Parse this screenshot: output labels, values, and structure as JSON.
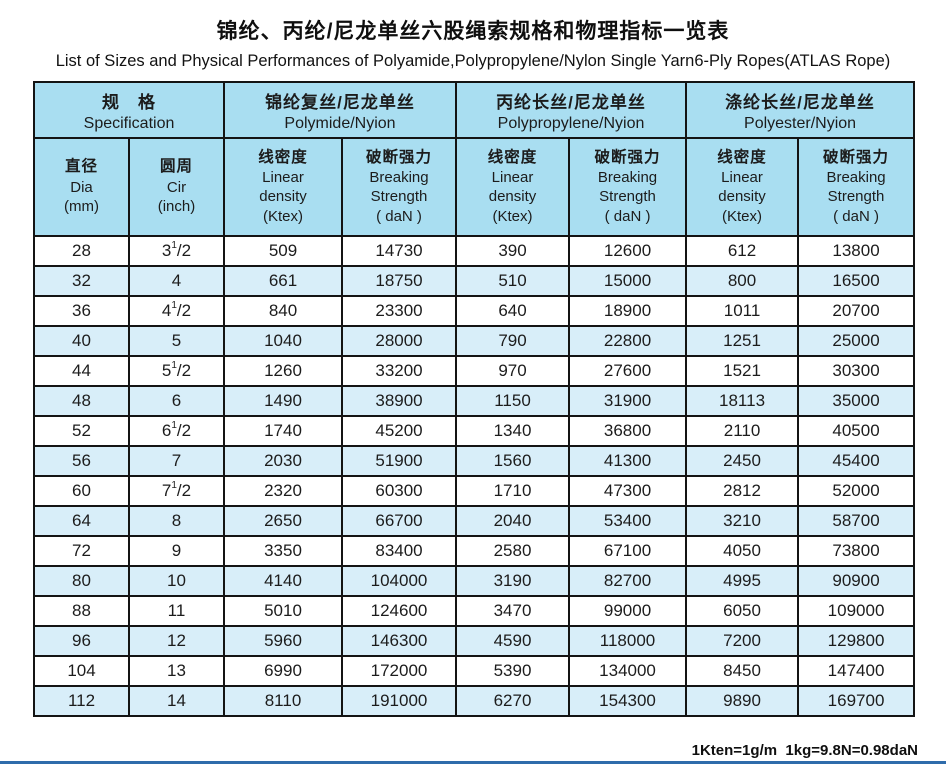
{
  "page": {
    "title": "锦纶、丙纶/尼龙单丝六股绳索规格和物理指标一览表",
    "subtitle": "List of Sizes and Physical Performances of Polyamide,Polypropylene/Nylon Single Yarn6-Ply Ropes(ATLAS Rope)",
    "footnote": "1Kten=1g/m  1kg=9.8N=0.98daN"
  },
  "colors": {
    "header_bg": "#a9def1",
    "row_alt_bg": "#d8eef9",
    "row_bg": "#ffffff",
    "border": "#141414",
    "bottom_rule": "#2f6cab"
  },
  "table": {
    "groups": [
      {
        "zh": "规　格",
        "en": "Specification"
      },
      {
        "zh": "锦纶复丝/尼龙单丝",
        "en": "Polymide/Nyion"
      },
      {
        "zh": "丙纶长丝/尼龙单丝",
        "en": "Polypropylene/Nyion"
      },
      {
        "zh": "涤纶长丝/尼龙单丝",
        "en": "Polyester/Nyion"
      }
    ],
    "columns": [
      {
        "key": "dia",
        "lines": [
          "直径",
          "Dia",
          "(mm)"
        ]
      },
      {
        "key": "cir",
        "lines": [
          "圆周",
          "Cir",
          "(inch)"
        ]
      },
      {
        "key": "pa-linear-density",
        "lines": [
          "线密度",
          "Linear",
          "density",
          "(Ktex)"
        ]
      },
      {
        "key": "pa-breaking-strength",
        "lines": [
          "破断强力",
          "Breaking",
          "Strength",
          "( daN )"
        ]
      },
      {
        "key": "pp-linear-density",
        "lines": [
          "线密度",
          "Linear",
          "density",
          "(Ktex)"
        ]
      },
      {
        "key": "pp-breaking-strength",
        "lines": [
          "破断强力",
          "Breaking",
          "Strength",
          "( daN )"
        ]
      },
      {
        "key": "pet-linear-density",
        "lines": [
          "线密度",
          "Linear",
          "density",
          "(Ktex)"
        ]
      },
      {
        "key": "pet-breaking-strength",
        "lines": [
          "破断强力",
          "Breaking",
          "Strength",
          "( daN )"
        ]
      }
    ],
    "rows": [
      {
        "dia": "28",
        "cir": {
          "base": "3",
          "sup": "1",
          "rest": "/2"
        },
        "values": [
          "509",
          "14730",
          "390",
          "12600",
          "612",
          "13800"
        ]
      },
      {
        "dia": "32",
        "cir": {
          "base": "4",
          "sup": "",
          "rest": ""
        },
        "values": [
          "661",
          "18750",
          "510",
          "15000",
          "800",
          "16500"
        ]
      },
      {
        "dia": "36",
        "cir": {
          "base": "4",
          "sup": "1",
          "rest": "/2"
        },
        "values": [
          "840",
          "23300",
          "640",
          "18900",
          "1011",
          "20700"
        ]
      },
      {
        "dia": "40",
        "cir": {
          "base": "5",
          "sup": "",
          "rest": ""
        },
        "values": [
          "1040",
          "28000",
          "790",
          "22800",
          "1251",
          "25000"
        ]
      },
      {
        "dia": "44",
        "cir": {
          "base": "5",
          "sup": "1",
          "rest": "/2"
        },
        "values": [
          "1260",
          "33200",
          "970",
          "27600",
          "1521",
          "30300"
        ]
      },
      {
        "dia": "48",
        "cir": {
          "base": "6",
          "sup": "",
          "rest": ""
        },
        "values": [
          "1490",
          "38900",
          "1150",
          "31900",
          "18113",
          "35000"
        ]
      },
      {
        "dia": "52",
        "cir": {
          "base": "6",
          "sup": "1",
          "rest": "/2"
        },
        "values": [
          "1740",
          "45200",
          "1340",
          "36800",
          "2110",
          "40500"
        ]
      },
      {
        "dia": "56",
        "cir": {
          "base": "7",
          "sup": "",
          "rest": ""
        },
        "values": [
          "2030",
          "51900",
          "1560",
          "41300",
          "2450",
          "45400"
        ]
      },
      {
        "dia": "60",
        "cir": {
          "base": "7",
          "sup": "1",
          "rest": "/2"
        },
        "values": [
          "2320",
          "60300",
          "1710",
          "47300",
          "2812",
          "52000"
        ]
      },
      {
        "dia": "64",
        "cir": {
          "base": "8",
          "sup": "",
          "rest": ""
        },
        "values": [
          "2650",
          "66700",
          "2040",
          "53400",
          "3210",
          "58700"
        ]
      },
      {
        "dia": "72",
        "cir": {
          "base": "9",
          "sup": "",
          "rest": ""
        },
        "values": [
          "3350",
          "83400",
          "2580",
          "67100",
          "4050",
          "73800"
        ]
      },
      {
        "dia": "80",
        "cir": {
          "base": "10",
          "sup": "",
          "rest": ""
        },
        "values": [
          "4140",
          "104000",
          "3190",
          "82700",
          "4995",
          "90900"
        ]
      },
      {
        "dia": "88",
        "cir": {
          "base": "11",
          "sup": "",
          "rest": ""
        },
        "values": [
          "5010",
          "124600",
          "3470",
          "99000",
          "6050",
          "109000"
        ]
      },
      {
        "dia": "96",
        "cir": {
          "base": "12",
          "sup": "",
          "rest": ""
        },
        "values": [
          "5960",
          "146300",
          "4590",
          "118000",
          "7200",
          "129800"
        ]
      },
      {
        "dia": "104",
        "cir": {
          "base": "13",
          "sup": "",
          "rest": ""
        },
        "values": [
          "6990",
          "172000",
          "5390",
          "134000",
          "8450",
          "147400"
        ]
      },
      {
        "dia": "112",
        "cir": {
          "base": "14",
          "sup": "",
          "rest": ""
        },
        "values": [
          "8110",
          "191000",
          "6270",
          "154300",
          "9890",
          "169700"
        ]
      }
    ]
  }
}
